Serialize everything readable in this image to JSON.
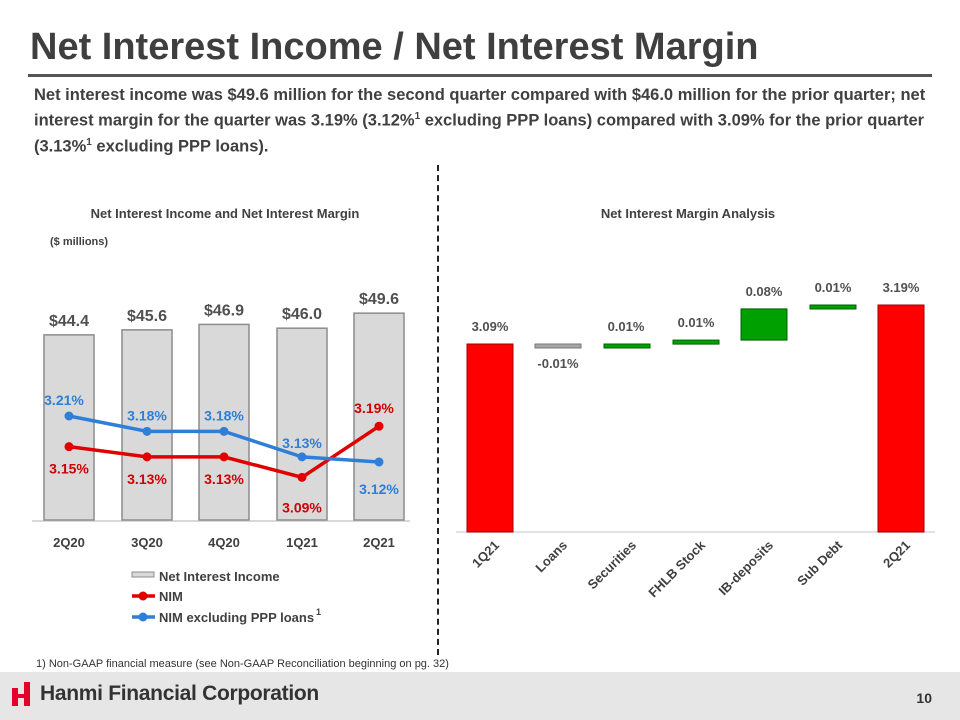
{
  "title": "Net Interest Income / Net Interest Margin",
  "subtitle": {
    "p1": "Net interest income was $49.6 million for the second quarter compared with $46.0 million for the prior quarter; net interest margin for the quarter was 3.19% (3.12%",
    "sup1": "1",
    "p2": " excluding PPP loans) compared with 3.09% for the prior quarter (3.13%",
    "sup2": "1",
    "p3": " excluding PPP loans)."
  },
  "footnote": "1)     Non-GAAP financial measure (see Non-GAAP Reconciliation beginning on pg. 32)",
  "company": "Hanmi Financial Corporation",
  "page_number": "10",
  "chart_data": [
    {
      "type": "bar+line",
      "title": "Net Interest Income and Net Interest Margin",
      "unit_label": "($ millions)",
      "categories": [
        "2Q20",
        "3Q20",
        "4Q20",
        "1Q21",
        "2Q21"
      ],
      "series": [
        {
          "name": "Net Interest Income",
          "type": "bar",
          "values": [
            44.4,
            45.6,
            46.9,
            46.0,
            49.6
          ],
          "labels": [
            "$44.4",
            "$45.6",
            "$46.9",
            "$46.0",
            "$49.6"
          ],
          "color": "#d9d9d9"
        },
        {
          "name": "NIM",
          "type": "line",
          "values": [
            3.15,
            3.13,
            3.13,
            3.09,
            3.19
          ],
          "labels": [
            "3.15%",
            "3.13%",
            "3.13%",
            "3.09%",
            "3.19%"
          ],
          "color": "#e00000"
        },
        {
          "name": "NIM excluding PPP loans",
          "name_sup": "1",
          "type": "line",
          "values": [
            3.21,
            3.18,
            3.18,
            3.13,
            3.12
          ],
          "labels": [
            "3.21%",
            "3.18%",
            "3.18%",
            "3.13%",
            "3.12%"
          ],
          "color": "#2f7fd8"
        }
      ],
      "legend": "bottom"
    },
    {
      "type": "waterfall",
      "title": "Net Interest Margin Analysis",
      "categories": [
        "1Q21",
        "Loans",
        "Securities",
        "FHLB Stock",
        "IB-deposits",
        "Sub Debt",
        "2Q21"
      ],
      "values": [
        3.09,
        -0.01,
        0.01,
        0.01,
        0.08,
        0.01,
        3.19
      ],
      "labels": [
        "3.09%",
        "-0.01%",
        "0.01%",
        "0.01%",
        "0.08%",
        "0.01%",
        "3.19%"
      ],
      "kinds": [
        "total",
        "delta",
        "delta",
        "delta",
        "delta",
        "delta",
        "total"
      ],
      "colors": {
        "total": "#ff0000",
        "increase": "#00a000",
        "decrease": "#a6a6a6"
      }
    }
  ]
}
